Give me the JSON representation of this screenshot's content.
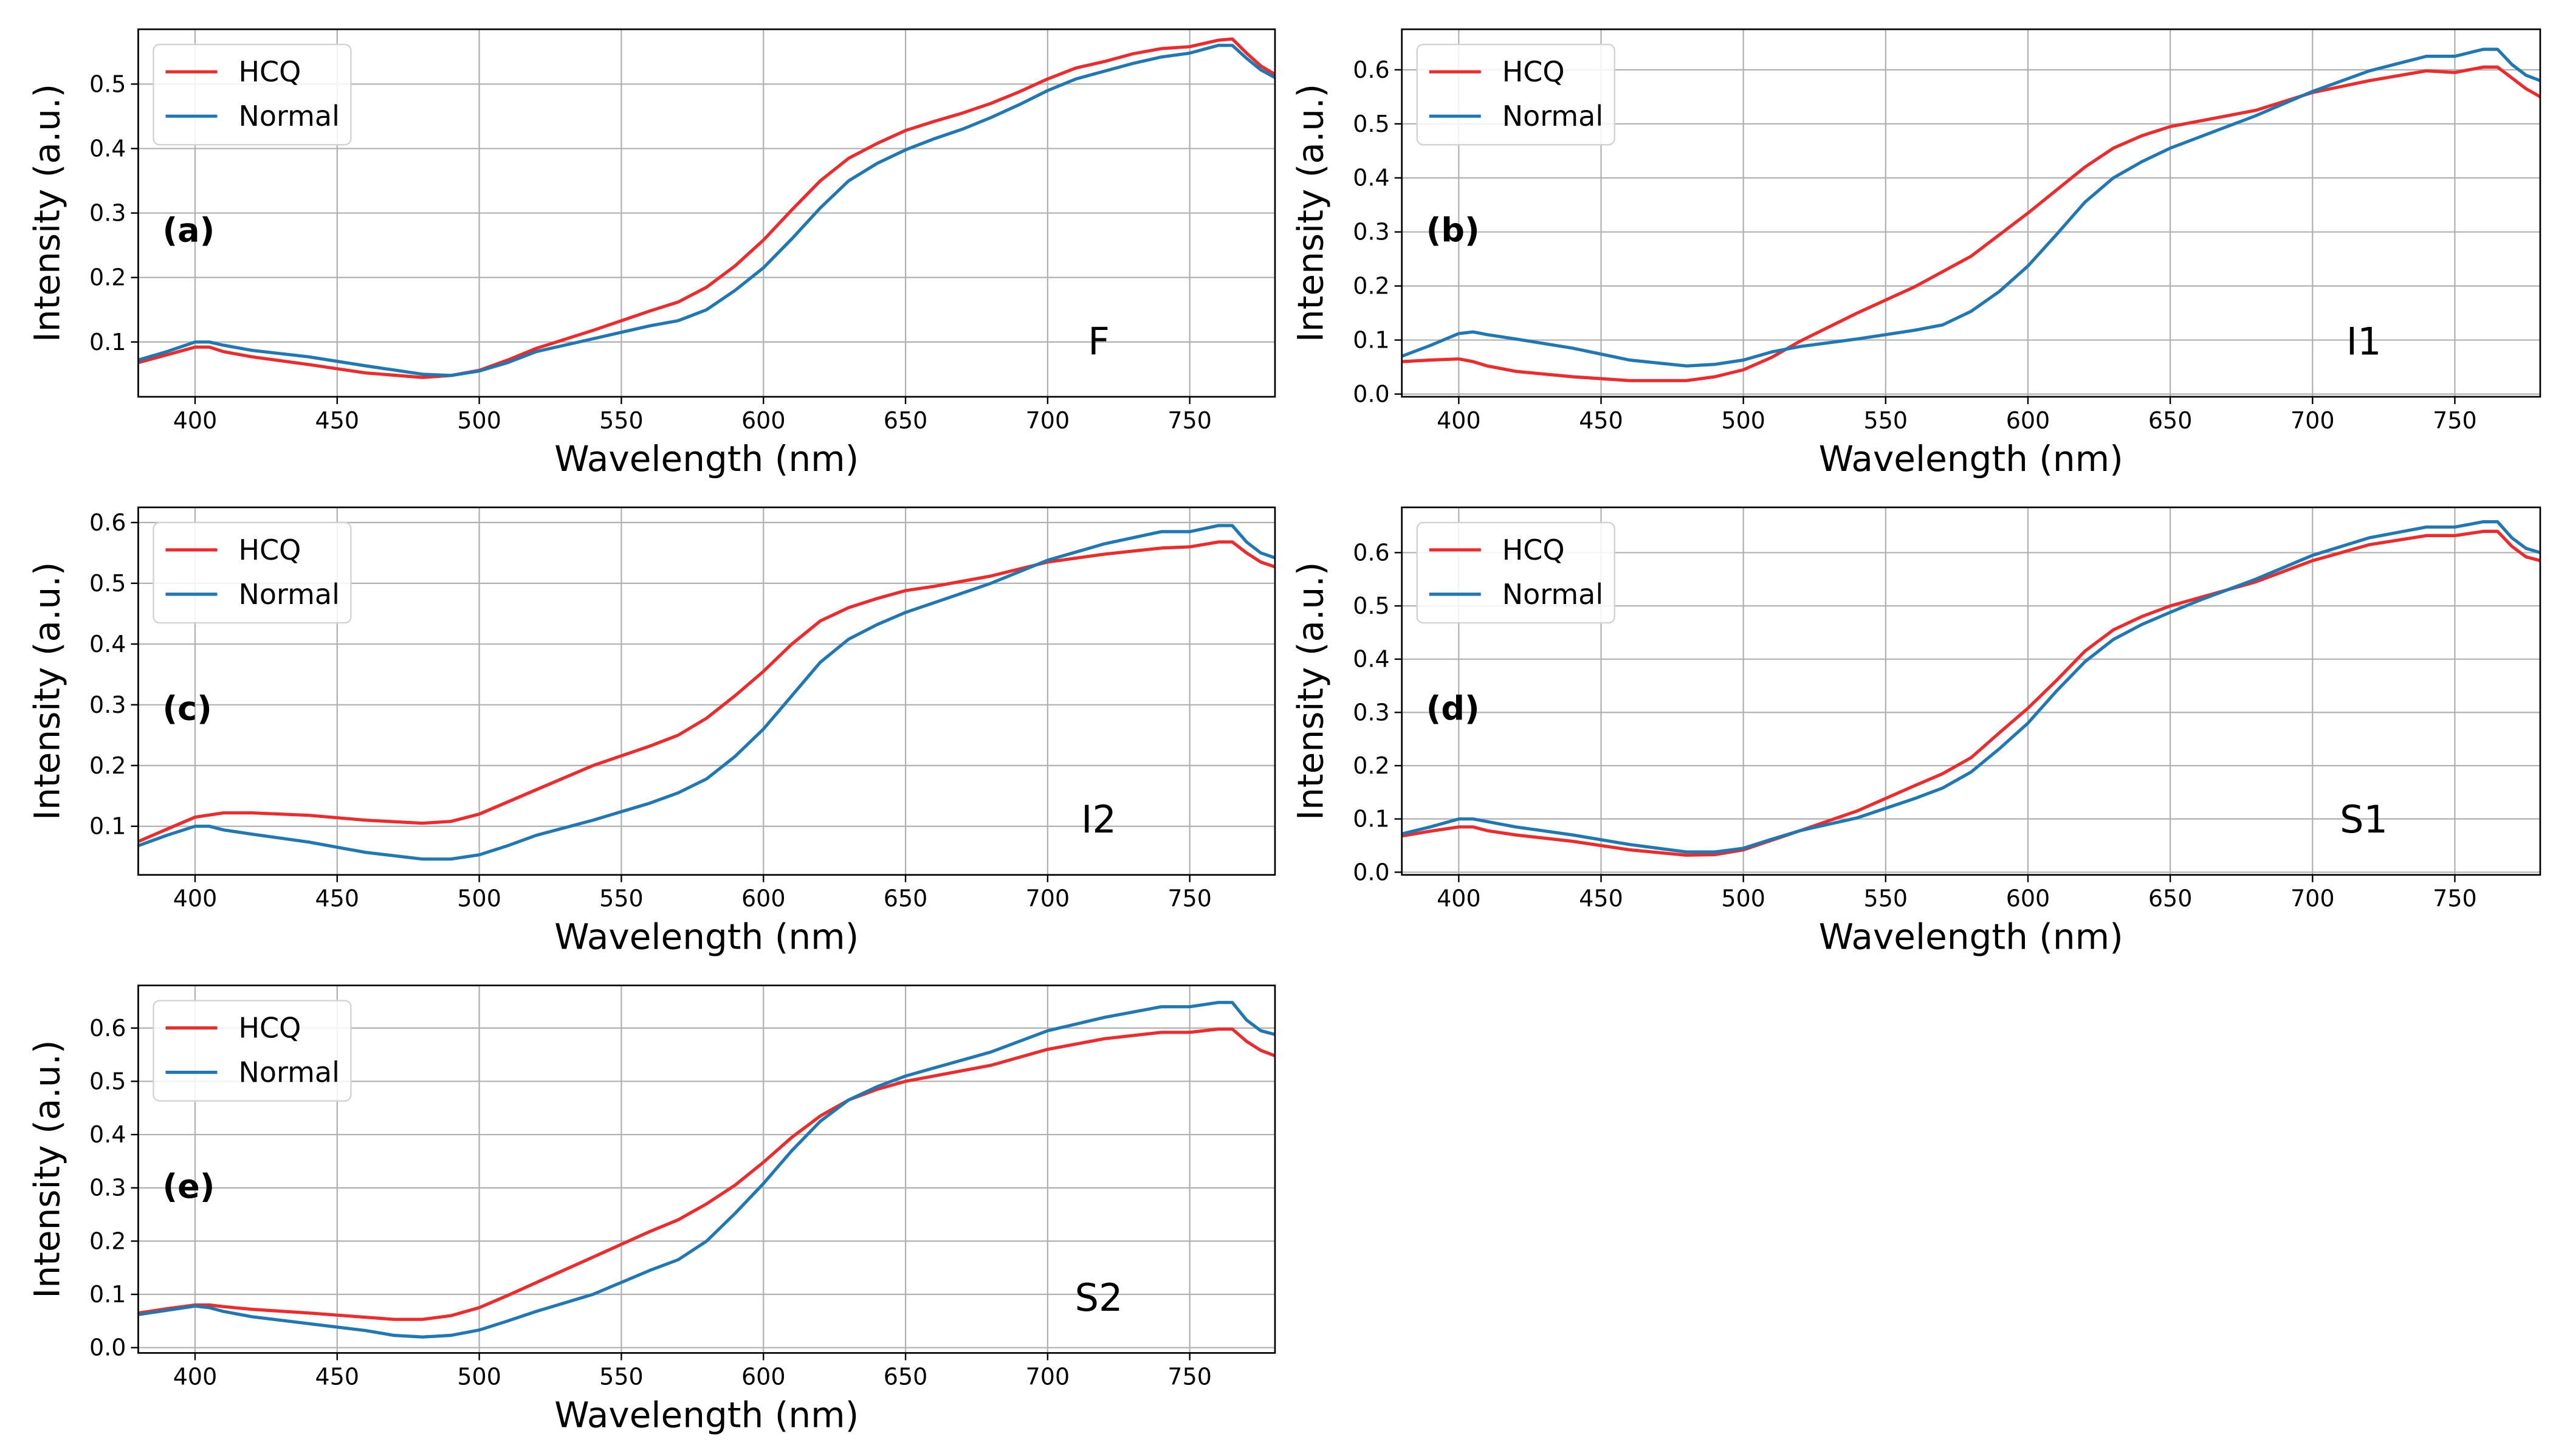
{
  "chart_data": [
    {
      "type": "line",
      "panel_label": "(a)",
      "annotation": "F",
      "xlabel": "Wavelength (nm)",
      "ylabel": "Intensity (a.u.)",
      "xlim": [
        380,
        780
      ],
      "ylim": [
        0.015,
        0.585
      ],
      "xticks": [
        400,
        450,
        500,
        550,
        600,
        650,
        700,
        750
      ],
      "yticks": [
        0.1,
        0.2,
        0.3,
        0.4,
        0.5
      ],
      "grid": true,
      "legend_position": "top-left",
      "series": [
        {
          "name": "HCQ",
          "color": "#ee2a2a",
          "x": [
            380,
            390,
            400,
            405,
            410,
            420,
            440,
            460,
            480,
            490,
            500,
            510,
            520,
            540,
            560,
            570,
            580,
            590,
            600,
            610,
            620,
            630,
            640,
            650,
            660,
            670,
            680,
            690,
            700,
            710,
            720,
            730,
            740,
            750,
            760,
            765,
            770,
            775,
            780
          ],
          "y": [
            0.068,
            0.08,
            0.092,
            0.092,
            0.085,
            0.077,
            0.065,
            0.052,
            0.045,
            0.048,
            0.056,
            0.072,
            0.09,
            0.118,
            0.148,
            0.162,
            0.185,
            0.218,
            0.258,
            0.305,
            0.35,
            0.385,
            0.408,
            0.428,
            0.442,
            0.455,
            0.47,
            0.488,
            0.508,
            0.525,
            0.535,
            0.547,
            0.555,
            0.558,
            0.568,
            0.57,
            0.548,
            0.528,
            0.515
          ]
        },
        {
          "name": "Normal",
          "color": "#1f77b4",
          "x": [
            380,
            390,
            400,
            405,
            410,
            420,
            440,
            460,
            480,
            490,
            500,
            510,
            520,
            540,
            560,
            570,
            580,
            590,
            600,
            610,
            620,
            630,
            640,
            650,
            660,
            670,
            680,
            690,
            700,
            710,
            720,
            730,
            740,
            750,
            760,
            765,
            770,
            775,
            780
          ],
          "y": [
            0.072,
            0.085,
            0.1,
            0.1,
            0.095,
            0.087,
            0.077,
            0.063,
            0.05,
            0.048,
            0.055,
            0.068,
            0.085,
            0.105,
            0.125,
            0.133,
            0.15,
            0.18,
            0.215,
            0.26,
            0.308,
            0.35,
            0.377,
            0.398,
            0.415,
            0.43,
            0.448,
            0.468,
            0.49,
            0.508,
            0.52,
            0.532,
            0.542,
            0.548,
            0.56,
            0.56,
            0.54,
            0.522,
            0.51
          ]
        }
      ]
    },
    {
      "type": "line",
      "panel_label": "(b)",
      "annotation": "I1",
      "xlabel": "Wavelength (nm)",
      "ylabel": "Intensity (a.u.)",
      "xlim": [
        380,
        780
      ],
      "ylim": [
        -0.005,
        0.675
      ],
      "xticks": [
        400,
        450,
        500,
        550,
        600,
        650,
        700,
        750
      ],
      "yticks": [
        0.0,
        0.1,
        0.2,
        0.3,
        0.4,
        0.5,
        0.6
      ],
      "grid": true,
      "legend_position": "top-left",
      "series": [
        {
          "name": "HCQ",
          "color": "#ee2a2a",
          "x": [
            380,
            390,
            400,
            405,
            410,
            420,
            440,
            460,
            480,
            490,
            500,
            510,
            520,
            540,
            560,
            580,
            600,
            620,
            630,
            640,
            650,
            660,
            680,
            700,
            720,
            740,
            750,
            760,
            765,
            770,
            775,
            780
          ],
          "y": [
            0.06,
            0.063,
            0.065,
            0.06,
            0.052,
            0.042,
            0.032,
            0.025,
            0.025,
            0.032,
            0.045,
            0.068,
            0.098,
            0.15,
            0.198,
            0.255,
            0.335,
            0.42,
            0.455,
            0.478,
            0.495,
            0.505,
            0.525,
            0.558,
            0.58,
            0.598,
            0.595,
            0.605,
            0.605,
            0.585,
            0.565,
            0.55
          ]
        },
        {
          "name": "Normal",
          "color": "#1f77b4",
          "x": [
            380,
            390,
            400,
            405,
            410,
            420,
            440,
            460,
            480,
            490,
            500,
            510,
            520,
            540,
            560,
            570,
            580,
            590,
            600,
            610,
            620,
            630,
            640,
            650,
            660,
            680,
            700,
            720,
            740,
            750,
            760,
            765,
            770,
            775,
            780
          ],
          "y": [
            0.07,
            0.09,
            0.112,
            0.115,
            0.11,
            0.102,
            0.085,
            0.063,
            0.052,
            0.055,
            0.063,
            0.078,
            0.088,
            0.102,
            0.118,
            0.128,
            0.153,
            0.19,
            0.237,
            0.295,
            0.355,
            0.4,
            0.43,
            0.455,
            0.475,
            0.515,
            0.56,
            0.598,
            0.625,
            0.625,
            0.638,
            0.638,
            0.61,
            0.59,
            0.58
          ]
        }
      ]
    },
    {
      "type": "line",
      "panel_label": "(c)",
      "annotation": "I2",
      "xlabel": "Wavelength (nm)",
      "ylabel": "Intensity (a.u.)",
      "xlim": [
        380,
        780
      ],
      "ylim": [
        0.02,
        0.625
      ],
      "xticks": [
        400,
        450,
        500,
        550,
        600,
        650,
        700,
        750
      ],
      "yticks": [
        0.1,
        0.2,
        0.3,
        0.4,
        0.5,
        0.6
      ],
      "grid": true,
      "legend_position": "top-left",
      "series": [
        {
          "name": "HCQ",
          "color": "#ee2a2a",
          "x": [
            380,
            390,
            400,
            410,
            420,
            440,
            460,
            480,
            490,
            500,
            510,
            520,
            540,
            560,
            570,
            580,
            590,
            600,
            610,
            620,
            630,
            640,
            650,
            660,
            680,
            700,
            720,
            740,
            750,
            760,
            765,
            770,
            775,
            780
          ],
          "y": [
            0.075,
            0.095,
            0.115,
            0.122,
            0.122,
            0.118,
            0.11,
            0.105,
            0.108,
            0.12,
            0.14,
            0.16,
            0.2,
            0.232,
            0.25,
            0.278,
            0.315,
            0.355,
            0.4,
            0.438,
            0.46,
            0.475,
            0.488,
            0.495,
            0.512,
            0.535,
            0.548,
            0.558,
            0.56,
            0.568,
            0.568,
            0.55,
            0.535,
            0.527
          ]
        },
        {
          "name": "Normal",
          "color": "#1f77b4",
          "x": [
            380,
            390,
            400,
            405,
            410,
            420,
            440,
            460,
            480,
            490,
            500,
            510,
            520,
            540,
            560,
            570,
            580,
            590,
            600,
            610,
            620,
            630,
            640,
            650,
            660,
            680,
            700,
            720,
            740,
            750,
            760,
            765,
            770,
            775,
            780
          ],
          "y": [
            0.068,
            0.085,
            0.1,
            0.1,
            0.094,
            0.087,
            0.074,
            0.057,
            0.046,
            0.046,
            0.053,
            0.068,
            0.085,
            0.11,
            0.138,
            0.155,
            0.178,
            0.215,
            0.26,
            0.315,
            0.37,
            0.408,
            0.432,
            0.452,
            0.468,
            0.5,
            0.538,
            0.565,
            0.585,
            0.585,
            0.595,
            0.595,
            0.568,
            0.55,
            0.542
          ]
        }
      ]
    },
    {
      "type": "line",
      "panel_label": "(d)",
      "annotation": "S1",
      "xlabel": "Wavelength (nm)",
      "ylabel": "Intensity (a.u.)",
      "xlim": [
        380,
        780
      ],
      "ylim": [
        -0.005,
        0.685
      ],
      "xticks": [
        400,
        450,
        500,
        550,
        600,
        650,
        700,
        750
      ],
      "yticks": [
        0.0,
        0.1,
        0.2,
        0.3,
        0.4,
        0.5,
        0.6
      ],
      "grid": true,
      "legend_position": "top-left",
      "series": [
        {
          "name": "HCQ",
          "color": "#ee2a2a",
          "x": [
            380,
            390,
            400,
            405,
            410,
            420,
            440,
            460,
            480,
            490,
            500,
            510,
            520,
            540,
            560,
            570,
            580,
            590,
            600,
            610,
            620,
            630,
            640,
            650,
            660,
            680,
            700,
            720,
            740,
            750,
            760,
            765,
            770,
            775,
            780
          ],
          "y": [
            0.068,
            0.077,
            0.085,
            0.085,
            0.078,
            0.07,
            0.058,
            0.042,
            0.032,
            0.033,
            0.042,
            0.06,
            0.078,
            0.115,
            0.162,
            0.185,
            0.215,
            0.262,
            0.308,
            0.36,
            0.415,
            0.455,
            0.48,
            0.5,
            0.515,
            0.545,
            0.585,
            0.615,
            0.632,
            0.632,
            0.64,
            0.64,
            0.612,
            0.592,
            0.585
          ]
        },
        {
          "name": "Normal",
          "color": "#1f77b4",
          "x": [
            380,
            390,
            400,
            405,
            410,
            420,
            440,
            460,
            480,
            490,
            500,
            510,
            520,
            540,
            560,
            570,
            580,
            590,
            600,
            610,
            620,
            630,
            640,
            650,
            660,
            680,
            700,
            720,
            740,
            750,
            760,
            765,
            770,
            775,
            780
          ],
          "y": [
            0.072,
            0.085,
            0.1,
            0.1,
            0.095,
            0.085,
            0.07,
            0.052,
            0.038,
            0.038,
            0.045,
            0.062,
            0.078,
            0.102,
            0.138,
            0.158,
            0.188,
            0.232,
            0.28,
            0.34,
            0.395,
            0.437,
            0.465,
            0.488,
            0.51,
            0.55,
            0.595,
            0.628,
            0.648,
            0.648,
            0.658,
            0.658,
            0.628,
            0.608,
            0.6
          ]
        }
      ]
    },
    {
      "type": "line",
      "panel_label": "(e)",
      "annotation": "S2",
      "xlabel": "Wavelength (nm)",
      "ylabel": "Intensity (a.u.)",
      "xlim": [
        380,
        780
      ],
      "ylim": [
        -0.01,
        0.68
      ],
      "xticks": [
        400,
        450,
        500,
        550,
        600,
        650,
        700,
        750
      ],
      "yticks": [
        0.0,
        0.1,
        0.2,
        0.3,
        0.4,
        0.5,
        0.6
      ],
      "grid": true,
      "legend_position": "top-left",
      "series": [
        {
          "name": "HCQ",
          "color": "#ee2a2a",
          "x": [
            380,
            390,
            400,
            405,
            410,
            420,
            440,
            460,
            470,
            480,
            490,
            500,
            510,
            520,
            540,
            560,
            570,
            580,
            590,
            600,
            610,
            620,
            630,
            640,
            650,
            660,
            680,
            700,
            720,
            740,
            750,
            760,
            765,
            770,
            775,
            780
          ],
          "y": [
            0.065,
            0.073,
            0.08,
            0.08,
            0.077,
            0.072,
            0.065,
            0.057,
            0.053,
            0.053,
            0.06,
            0.075,
            0.098,
            0.122,
            0.17,
            0.218,
            0.24,
            0.27,
            0.305,
            0.348,
            0.395,
            0.435,
            0.465,
            0.485,
            0.5,
            0.51,
            0.53,
            0.56,
            0.58,
            0.592,
            0.592,
            0.598,
            0.598,
            0.575,
            0.558,
            0.548
          ]
        },
        {
          "name": "Normal",
          "color": "#1f77b4",
          "x": [
            380,
            390,
            400,
            405,
            410,
            420,
            440,
            460,
            470,
            480,
            490,
            500,
            510,
            520,
            540,
            560,
            570,
            580,
            590,
            600,
            610,
            620,
            630,
            640,
            650,
            660,
            680,
            700,
            720,
            740,
            750,
            760,
            765,
            770,
            775,
            780
          ],
          "y": [
            0.062,
            0.07,
            0.078,
            0.075,
            0.068,
            0.058,
            0.045,
            0.032,
            0.023,
            0.02,
            0.023,
            0.033,
            0.05,
            0.068,
            0.1,
            0.145,
            0.165,
            0.2,
            0.252,
            0.308,
            0.37,
            0.425,
            0.465,
            0.49,
            0.51,
            0.525,
            0.555,
            0.595,
            0.62,
            0.64,
            0.64,
            0.648,
            0.648,
            0.615,
            0.595,
            0.588
          ]
        }
      ]
    }
  ]
}
